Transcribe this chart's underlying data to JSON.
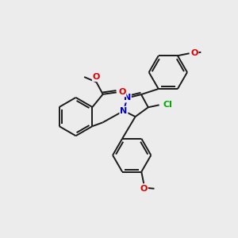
{
  "background_color": "#ececec",
  "bond_color": "#1a1a1a",
  "nitrogen_color": "#0000cc",
  "oxygen_color": "#dd0000",
  "chlorine_color": "#00aa00",
  "font_size": 8,
  "figsize": [
    3.0,
    3.0
  ],
  "dpi": 100,
  "xlim": [
    0,
    10
  ],
  "ylim": [
    0,
    10
  ]
}
